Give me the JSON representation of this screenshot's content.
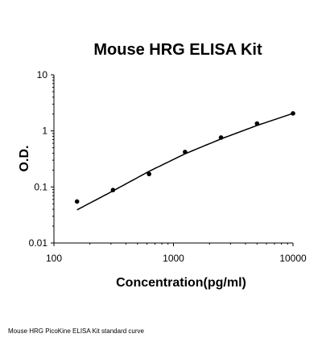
{
  "chart_data": {
    "type": "scatter",
    "title": "Mouse HRG ELISA Kit",
    "xlabel": "Concentration(pg/ml)",
    "ylabel": "O.D.",
    "xscale": "log",
    "yscale": "log",
    "xlim": [
      100,
      10000
    ],
    "ylim": [
      0.01,
      10
    ],
    "xticks": [
      "100",
      "1000",
      "10000"
    ],
    "yticks": [
      "0.01",
      "0.1",
      "1",
      "10"
    ],
    "grid": false,
    "legend": "none",
    "series": [
      {
        "points": [
          {
            "x": 156,
            "y": 0.055
          },
          {
            "x": 312,
            "y": 0.088
          },
          {
            "x": 625,
            "y": 0.17
          },
          {
            "x": 1250,
            "y": 0.42
          },
          {
            "x": 2500,
            "y": 0.76
          },
          {
            "x": 5000,
            "y": 1.35
          },
          {
            "x": 10000,
            "y": 2.05
          }
        ],
        "fit": [
          {
            "x": 156,
            "y": 0.039
          },
          {
            "x": 312,
            "y": 0.085
          },
          {
            "x": 625,
            "y": 0.19
          },
          {
            "x": 1250,
            "y": 0.39
          },
          {
            "x": 2500,
            "y": 0.72
          },
          {
            "x": 5000,
            "y": 1.25
          },
          {
            "x": 10000,
            "y": 2.05
          }
        ]
      }
    ]
  },
  "caption": "Mouse HRG PicoKine ELISA Kit standard curve"
}
